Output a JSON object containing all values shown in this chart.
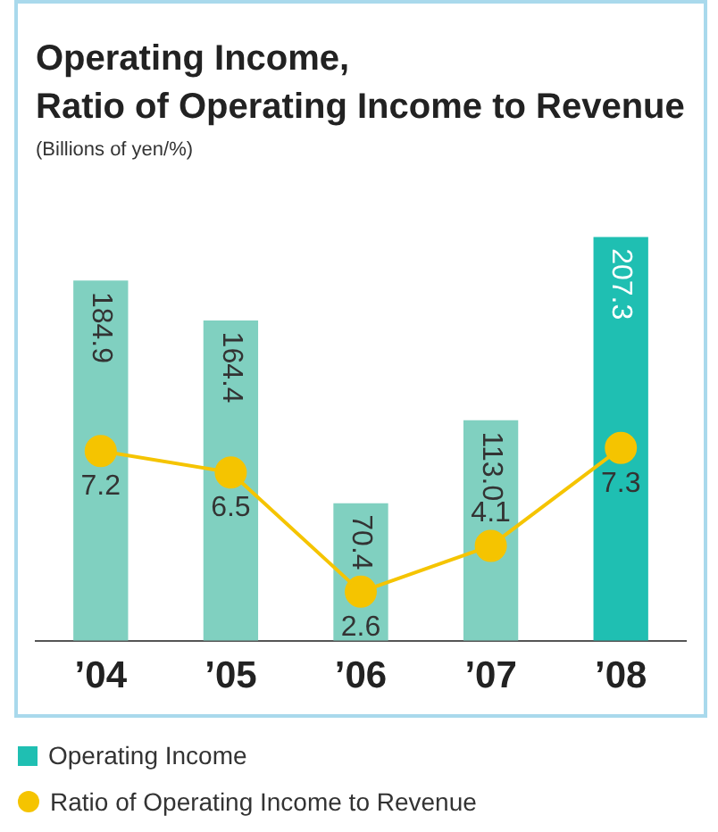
{
  "chart_data": {
    "type": "bar",
    "title": "Operating Income,\nRatio of Operating Income to Revenue",
    "subtitle": "(Billions of yen/%)",
    "categories": [
      "’04",
      "’05",
      "’06",
      "’07",
      "’08"
    ],
    "series": [
      {
        "name": "Operating Income",
        "value_labels": [
          "184.9",
          "164.4",
          "70.4",
          "113.0",
          "207.3"
        ],
        "colors": [
          "#80d0c0",
          "#80d0c0",
          "#80d0c0",
          "#80d0c0",
          "#1fbfb2"
        ],
        "color": "#1fbfb2",
        "values": [
          184.9,
          164.4,
          70.4,
          113.0,
          207.3
        ]
      },
      {
        "name": "Ratio of Operating Income to Revenue",
        "type": "line",
        "axis": "y2",
        "color": "#f5c400",
        "marker": "circle",
        "values": [
          7.2,
          6.5,
          2.6,
          4.1,
          7.3
        ]
      }
    ],
    "tick_labels": "x",
    "data_labels": true,
    "legend": "bottom",
    "grid": false
  }
}
